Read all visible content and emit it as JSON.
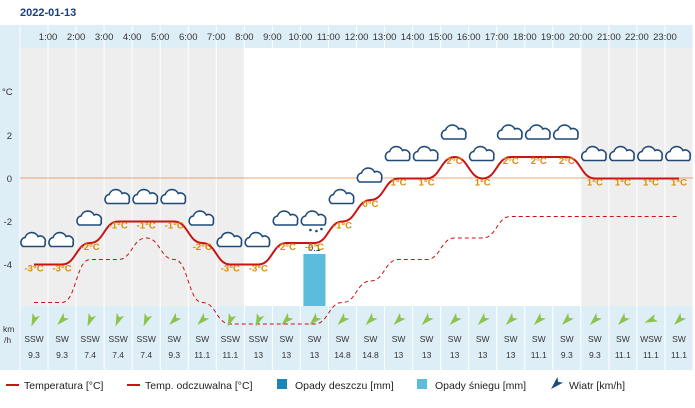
{
  "date": "2022-01-13",
  "colors": {
    "temperature": "#c81414",
    "feels_like": "#c81414",
    "rain": "#1a86b8",
    "snow": "#5bbcdc",
    "wind_arrow": "#8fc24a",
    "zero_line": "#e08a50"
  },
  "y_unit": "°C",
  "wind_unit_top": "km",
  "wind_unit_bottom": "/h",
  "chart_data": {
    "type": "line",
    "hours": [
      "1:00",
      "2:00",
      "3:00",
      "4:00",
      "5:00",
      "6:00",
      "7:00",
      "8:00",
      "9:00",
      "10:00",
      "11:00",
      "12:00",
      "13:00",
      "14:00",
      "15:00",
      "16:00",
      "17:00",
      "18:00",
      "19:00",
      "20:00",
      "21:00",
      "22:00",
      "23:00"
    ],
    "y_ticks": [
      2,
      0,
      -2,
      -4
    ],
    "ylim": [
      -6,
      4
    ],
    "temperature": [
      -3,
      -3,
      -2,
      -1,
      -1,
      -1,
      -2,
      -3,
      -3,
      -2,
      -2,
      -1,
      0,
      1,
      1,
      2,
      1,
      2,
      2,
      2,
      1,
      1,
      1,
      1
    ],
    "temperature_labels": [
      "-3°C",
      "-3°C",
      "-2°C",
      "-1°C",
      "-1°C",
      "-1°C",
      "-2°C",
      "-3°C",
      "-3°C",
      "-2°C",
      "-2°C",
      "-1°C",
      "0°C",
      "1°C",
      "1°C",
      "2°C",
      "1°C",
      "2°C",
      "2°C",
      "2°C",
      "1°C",
      "1°C",
      "1°C",
      "1°C"
    ],
    "feels_like": [
      -5,
      -5,
      -3,
      -3,
      -2,
      -3,
      -5,
      -6,
      -6,
      -6,
      -6,
      -5,
      -4,
      -3,
      -3,
      -2,
      -2,
      -1,
      -1,
      -1,
      -1,
      -1,
      -1,
      -1
    ],
    "icons": [
      "cloud",
      "cloud",
      "cloud",
      "cloud",
      "cloud",
      "cloud",
      "cloud",
      "sun-cloud",
      "cloud",
      "cloud",
      "snow-cloud",
      "cloud",
      "cloud",
      "cloud",
      "cloud",
      "cloud",
      "cloud",
      "cloud",
      "cloud",
      "cloud",
      "cloud",
      "cloud",
      "cloud",
      "cloud"
    ],
    "precipitation": [
      {
        "slot": 10,
        "value": 0.1,
        "type": "snow",
        "label": "0.1"
      }
    ],
    "wind_direction": [
      "SSW",
      "SW",
      "SSW",
      "SSW",
      "SSW",
      "SW",
      "SW",
      "SSW",
      "SSW",
      "SW",
      "SW",
      "SW",
      "SW",
      "SW",
      "SW",
      "SW",
      "SW",
      "SW",
      "SW",
      "SW",
      "SW",
      "SW",
      "WSW",
      "SW"
    ],
    "wind_speed": [
      "9.3",
      "9.3",
      "7.4",
      "7.4",
      "7.4",
      "9.3",
      "11.1",
      "11.1",
      "13",
      "13",
      "13",
      "14.8",
      "14.8",
      "13",
      "13",
      "13",
      "13",
      "13",
      "11.1",
      "9.3",
      "9.3",
      "11.1",
      "11.1",
      "11.1"
    ],
    "legend": [
      {
        "label": "Temperatura [°C]",
        "kind": "line"
      },
      {
        "label": "Temp. odczuwalna [°C]",
        "kind": "line"
      },
      {
        "label": "Opady deszczu [mm]",
        "kind": "rain"
      },
      {
        "label": "Opady śniegu [mm]",
        "kind": "snow"
      },
      {
        "label": "Wiatr [km/h]",
        "kind": "wind"
      }
    ]
  }
}
